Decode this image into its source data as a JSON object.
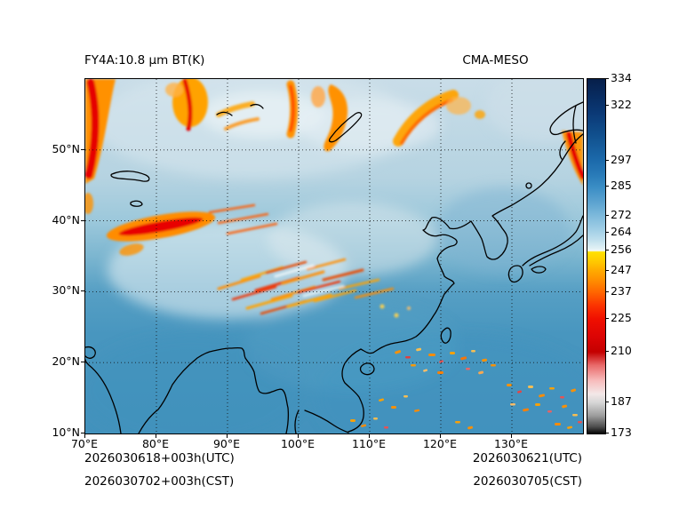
{
  "figure": {
    "title_left": "FY4A:10.8 μm BT(K)",
    "title_right": "CMA-MESO",
    "footer": {
      "left1": "2026030618+003h(UTC)",
      "left2": "2026030702+003h(CST)",
      "right1": "2026030621(UTC)",
      "right2": "2026030705(CST)"
    }
  },
  "chart_data": {
    "type": "heatmap",
    "title": "FY4A:10.8 μm BT(K)",
    "subtitle": "CMA-MESO",
    "variable": "FY-4A 10.8 micron infrared brightness temperature (K) simulated/plotted over East Asia",
    "x_axis": {
      "tick_labels": [
        "70°E",
        "80°E",
        "90°E",
        "100°E",
        "110°E",
        "120°E",
        "130°E"
      ],
      "tick_values": [
        70,
        80,
        90,
        100,
        110,
        120,
        130
      ],
      "range": [
        70,
        140
      ]
    },
    "y_axis": {
      "tick_labels": [
        "50°N",
        "40°N",
        "30°N",
        "20°N",
        "10°N"
      ],
      "tick_values": [
        50,
        40,
        30,
        20,
        10
      ],
      "range": [
        10,
        60
      ]
    },
    "grid": {
      "style": "dotted",
      "interval_deg": 10
    },
    "colorbar": {
      "tick_labels": [
        "334",
        "322",
        "297",
        "285",
        "272",
        "264",
        "256",
        "247",
        "237",
        "225",
        "210",
        "187",
        "173"
      ],
      "tick_values": [
        334,
        322,
        297,
        285,
        272,
        264,
        256,
        247,
        237,
        225,
        210,
        187,
        173
      ],
      "range": [
        173,
        334
      ],
      "gradient_stops": [
        {
          "v": 334,
          "c": "#071f4a"
        },
        {
          "v": 326,
          "c": "#082c61"
        },
        {
          "v": 318,
          "c": "#0b3a77"
        },
        {
          "v": 308,
          "c": "#11518f"
        },
        {
          "v": 297,
          "c": "#1c6aab"
        },
        {
          "v": 290,
          "c": "#2a7cb9"
        },
        {
          "v": 285,
          "c": "#3a8dc5"
        },
        {
          "v": 278,
          "c": "#5ca3d0"
        },
        {
          "v": 272,
          "c": "#7db9db"
        },
        {
          "v": 266,
          "c": "#9ecde5"
        },
        {
          "v": 261,
          "c": "#bfdfed"
        },
        {
          "v": 257,
          "c": "#e2f1f5"
        },
        {
          "v": 256,
          "c": "#f2f8fa"
        },
        {
          "v": 255.5,
          "c": "#ffe100"
        },
        {
          "v": 251,
          "c": "#ffc800"
        },
        {
          "v": 247,
          "c": "#ffaa00"
        },
        {
          "v": 242,
          "c": "#ff8a00"
        },
        {
          "v": 237,
          "c": "#ff6400"
        },
        {
          "v": 231,
          "c": "#fb3200"
        },
        {
          "v": 225,
          "c": "#f00f00"
        },
        {
          "v": 217,
          "c": "#dc0404"
        },
        {
          "v": 210,
          "c": "#c40000"
        },
        {
          "v": 204,
          "c": "#e96a6a"
        },
        {
          "v": 197,
          "c": "#f7bcbc"
        },
        {
          "v": 191,
          "c": "#f3e8e8"
        },
        {
          "v": 187,
          "c": "#d6d6d6"
        },
        {
          "v": 181,
          "c": "#9b9b9b"
        },
        {
          "v": 176,
          "c": "#4c4c4c"
        },
        {
          "v": 173,
          "c": "#060606"
        }
      ]
    },
    "features_note": "Cold cloud tops (<247 K, yellow/orange/red) along northern edge, NW India/Pakistan band near 38-42N, SW-NE wave-cloud streaks over central China 28-37N, orange streak clusters in tropics 10-22N east of 110E; warm clear areas in blue (>256 K)."
  }
}
